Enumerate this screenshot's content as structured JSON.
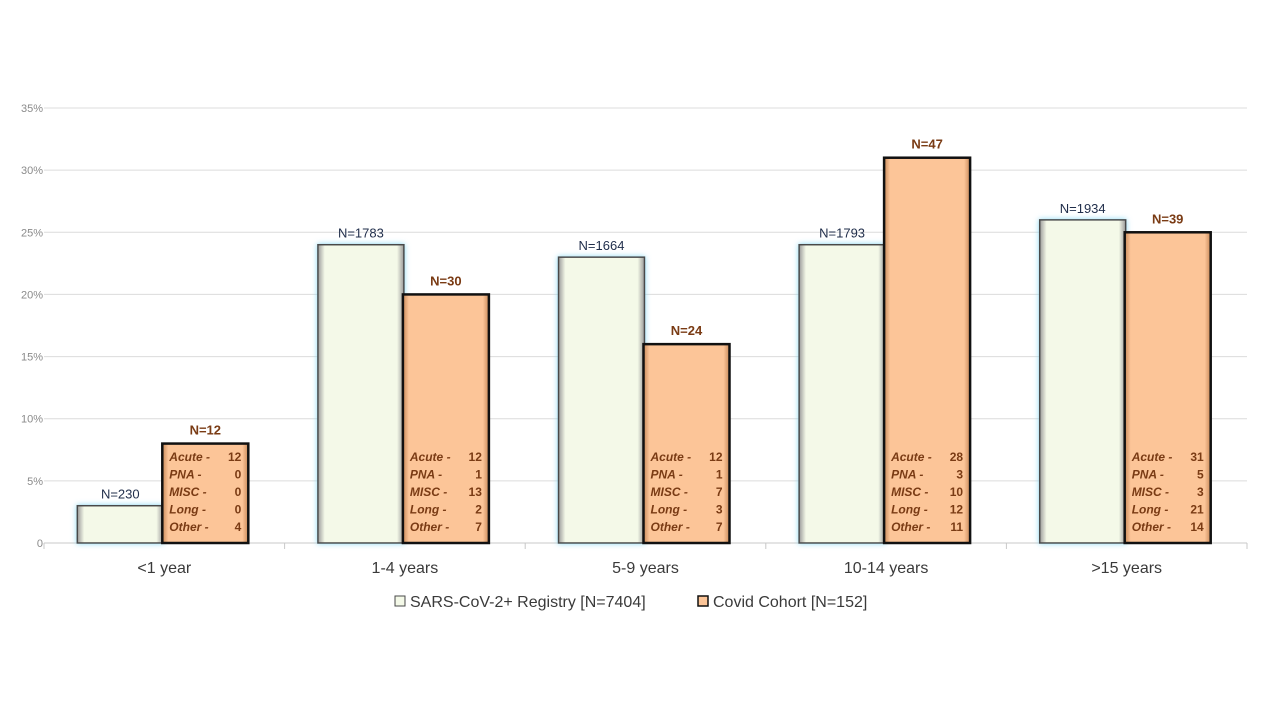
{
  "chart_data": {
    "type": "bar",
    "categories": [
      "<1 year",
      "1-4 years",
      "5-9 years",
      "10-14 years",
      ">15 years"
    ],
    "series": [
      {
        "name": "SARS-CoV-2+ Registry [N=7404]",
        "values": [
          3,
          24,
          23,
          24,
          26
        ],
        "labels": [
          "N=230",
          "N=1783",
          "N=1664",
          "N=1793",
          "N=1934"
        ],
        "color": "#f4f9e8"
      },
      {
        "name": "Covid Cohort [N=152]",
        "values": [
          8,
          20,
          16,
          31,
          25
        ],
        "labels": [
          "N=12",
          "N=30",
          "N=24",
          "N=47",
          "N=39"
        ],
        "color": "#fcc598",
        "breakdown_names": [
          "Acute -",
          "PNA -",
          "MISC -",
          "Long -",
          "Other -"
        ],
        "breakdown": [
          [
            12,
            0,
            0,
            0,
            4
          ],
          [
            12,
            1,
            13,
            2,
            7
          ],
          [
            12,
            1,
            7,
            3,
            7
          ],
          [
            28,
            3,
            10,
            12,
            11
          ],
          [
            31,
            5,
            3,
            21,
            14
          ]
        ]
      }
    ],
    "yticks": [
      "0",
      "5%",
      "10%",
      "15%",
      "20%",
      "25%",
      "30%",
      "35%"
    ],
    "ylim": [
      0,
      35
    ],
    "grid": true,
    "legend_position": "bottom",
    "title": "",
    "xlabel": "",
    "ylabel": ""
  }
}
